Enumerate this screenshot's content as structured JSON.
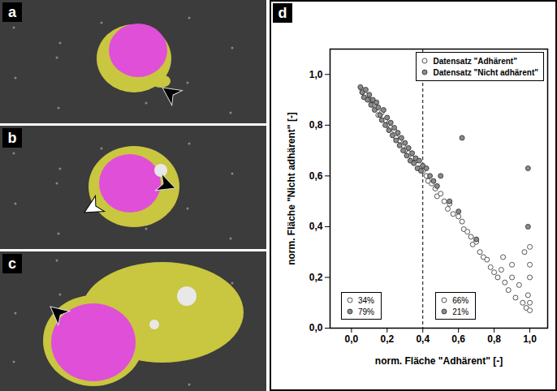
{
  "panel_labels": [
    "a",
    "b",
    "c",
    "d"
  ],
  "chart_data": {
    "type": "scatter",
    "xlabel": "norm. Fläche \"Adhärent\" [-]",
    "ylabel": "norm. Fläche \"Nicht adhärent\" [-]",
    "xlim": [
      -0.12,
      1.1
    ],
    "ylim": [
      0,
      1.1
    ],
    "xticks": [
      {
        "value": 0,
        "label": "0,0"
      },
      {
        "value": 0.2,
        "label": "0,2"
      },
      {
        "value": 0.4,
        "label": "0,4"
      },
      {
        "value": 0.6,
        "label": "0,6"
      },
      {
        "value": 0.8,
        "label": "0,8"
      },
      {
        "value": 1,
        "label": "1,0"
      }
    ],
    "yticks": [
      {
        "value": 0,
        "label": "0,0"
      },
      {
        "value": 0.2,
        "label": "0,2"
      },
      {
        "value": 0.4,
        "label": "0,4"
      },
      {
        "value": 0.6,
        "label": "0,6"
      },
      {
        "value": 0.8,
        "label": "0,8"
      },
      {
        "value": 1,
        "label": "1,0"
      }
    ],
    "legend": "top-right",
    "threshold": 0.4,
    "shares_left": [
      "34%",
      "79%"
    ],
    "shares_right": [
      "66%",
      "21%"
    ],
    "series": [
      {
        "name": "Datensatz \"Adhärent\"",
        "marker": "open",
        "color": "#444444",
        "x": [
          0.06,
          0.08,
          0.1,
          0.12,
          0.14,
          0.15,
          0.17,
          0.19,
          0.2,
          0.22,
          0.24,
          0.25,
          0.27,
          0.29,
          0.3,
          0.32,
          0.34,
          0.36,
          0.38,
          0.4,
          0.42,
          0.43,
          0.45,
          0.47,
          0.48,
          0.5,
          0.52,
          0.54,
          0.55,
          0.57,
          0.6,
          0.62,
          0.63,
          0.65,
          0.67,
          0.68,
          0.7,
          0.72,
          0.74,
          0.76,
          0.78,
          0.8,
          0.82,
          0.84,
          0.86,
          0.88,
          0.9,
          0.92,
          0.94,
          0.96,
          0.98,
          0.99,
          1.0,
          1.0,
          1.0,
          1.0,
          1.0,
          0.97,
          0.85,
          0.9
        ],
        "values": [
          0.94,
          0.92,
          0.9,
          0.88,
          0.87,
          0.84,
          0.85,
          0.82,
          0.8,
          0.79,
          0.78,
          0.75,
          0.74,
          0.72,
          0.7,
          0.69,
          0.67,
          0.66,
          0.63,
          0.62,
          0.6,
          0.58,
          0.57,
          0.55,
          0.52,
          0.53,
          0.5,
          0.47,
          0.49,
          0.45,
          0.44,
          0.42,
          0.39,
          0.38,
          0.36,
          0.33,
          0.34,
          0.3,
          0.28,
          0.27,
          0.24,
          0.22,
          0.2,
          0.23,
          0.18,
          0.15,
          0.2,
          0.12,
          0.17,
          0.1,
          0.08,
          0.13,
          0.07,
          0.1,
          0.2,
          0.25,
          0.32,
          0.3,
          0.28,
          0.25
        ]
      },
      {
        "name": "Datensatz \"Nicht adhärent\"",
        "marker": "filled",
        "color": "#8c8c8c",
        "x": [
          0.05,
          0.06,
          0.07,
          0.08,
          0.09,
          0.1,
          0.11,
          0.12,
          0.13,
          0.14,
          0.15,
          0.16,
          0.17,
          0.18,
          0.19,
          0.2,
          0.21,
          0.22,
          0.23,
          0.24,
          0.25,
          0.26,
          0.27,
          0.28,
          0.29,
          0.3,
          0.31,
          0.32,
          0.33,
          0.34,
          0.35,
          0.36,
          0.37,
          0.38,
          0.39,
          0.4,
          0.42,
          0.44,
          0.46,
          0.48,
          0.5,
          0.55,
          0.6,
          0.62,
          0.7,
          0.99,
          0.99
        ],
        "values": [
          0.95,
          0.93,
          0.91,
          0.94,
          0.9,
          0.92,
          0.88,
          0.9,
          0.86,
          0.89,
          0.87,
          0.84,
          0.82,
          0.86,
          0.8,
          0.83,
          0.78,
          0.81,
          0.76,
          0.79,
          0.74,
          0.77,
          0.72,
          0.75,
          0.7,
          0.73,
          0.68,
          0.71,
          0.66,
          0.69,
          0.65,
          0.67,
          0.63,
          0.66,
          0.62,
          0.64,
          0.63,
          0.6,
          0.58,
          0.56,
          0.6,
          0.5,
          0.46,
          0.75,
          0.35,
          0.63,
          0.4
        ]
      }
    ]
  }
}
